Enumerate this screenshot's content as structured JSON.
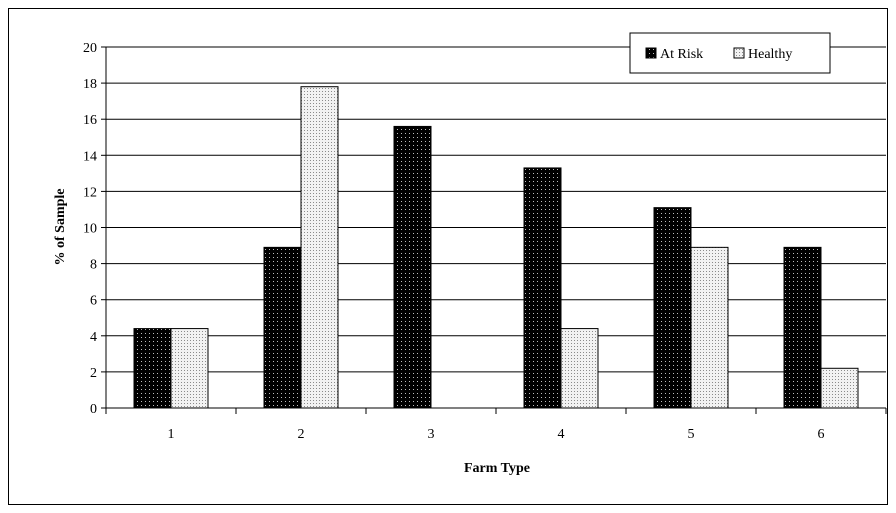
{
  "chart_data": {
    "type": "bar",
    "title": "",
    "xlabel": "Farm Type",
    "ylabel": "% of Sample",
    "ylim": [
      0,
      20
    ],
    "yticks": [
      0,
      2,
      4,
      6,
      8,
      10,
      12,
      14,
      16,
      18,
      20
    ],
    "categories": [
      "1",
      "2",
      "3",
      "4",
      "5",
      "6"
    ],
    "grid": "horizontal",
    "legend_position": "top-right",
    "series": [
      {
        "name": "At Risk",
        "pattern": "dark-dotted",
        "color": "#000000",
        "values": [
          4.4,
          8.9,
          15.6,
          13.3,
          11.1,
          8.9
        ]
      },
      {
        "name": "Healthy",
        "pattern": "light-dotted",
        "color": "#d9d9d9",
        "values": [
          4.4,
          17.8,
          0,
          4.4,
          8.9,
          2.2
        ]
      }
    ]
  }
}
